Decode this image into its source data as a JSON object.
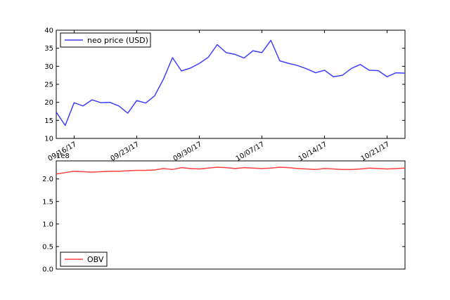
{
  "chart_data": [
    {
      "type": "line",
      "x": [
        "09/14/17",
        "09/15/17",
        "09/16/17",
        "09/17/17",
        "09/18/17",
        "09/19/17",
        "09/20/17",
        "09/21/17",
        "09/22/17",
        "09/23/17",
        "09/24/17",
        "09/25/17",
        "09/26/17",
        "09/27/17",
        "09/28/17",
        "09/29/17",
        "09/30/17",
        "10/01/17",
        "10/02/17",
        "10/03/17",
        "10/04/17",
        "10/05/17",
        "10/06/17",
        "10/07/17",
        "10/08/17",
        "10/09/17",
        "10/10/17",
        "10/11/17",
        "10/12/17",
        "10/13/17",
        "10/14/17",
        "10/15/17",
        "10/16/17",
        "10/17/17",
        "10/18/17",
        "10/19/17",
        "10/20/17",
        "10/21/17",
        "10/22/17",
        "10/23/17"
      ],
      "series": [
        {
          "name": "neo price (USD)",
          "color": "#3f3fff",
          "values": [
            17.3,
            13.6,
            19.9,
            19.0,
            20.7,
            19.9,
            20.0,
            19.0,
            17.0,
            20.5,
            19.8,
            21.8,
            26.5,
            32.4,
            28.7,
            29.5,
            30.8,
            32.5,
            36.0,
            33.8,
            33.3,
            32.3,
            34.3,
            33.8,
            37.2,
            31.5,
            30.8,
            30.2,
            29.3,
            28.2,
            28.9,
            27.1,
            27.5,
            29.4,
            30.5,
            28.9,
            28.8,
            27.1,
            28.2,
            28.1
          ]
        }
      ],
      "xticks": [
        "09/16/17",
        "09/23/17",
        "09/30/17",
        "10/07/17",
        "10/14/17",
        "10/21/17"
      ],
      "yticks": [
        "10",
        "15",
        "20",
        "25",
        "30",
        "35",
        "40"
      ],
      "ylim": [
        10,
        40
      ],
      "legend": "upper-left"
    },
    {
      "type": "line",
      "x": [
        "09/14/17",
        "09/15/17",
        "09/16/17",
        "09/17/17",
        "09/18/17",
        "09/19/17",
        "09/20/17",
        "09/21/17",
        "09/22/17",
        "09/23/17",
        "09/24/17",
        "09/25/17",
        "09/26/17",
        "09/27/17",
        "09/28/17",
        "09/29/17",
        "09/30/17",
        "10/01/17",
        "10/02/17",
        "10/03/17",
        "10/04/17",
        "10/05/17",
        "10/06/17",
        "10/07/17",
        "10/08/17",
        "10/09/17",
        "10/10/17",
        "10/11/17",
        "10/12/17",
        "10/13/17",
        "10/14/17",
        "10/15/17",
        "10/16/17",
        "10/17/17",
        "10/18/17",
        "10/19/17",
        "10/20/17",
        "10/21/17",
        "10/22/17",
        "10/23/17"
      ],
      "series": [
        {
          "name": "OBV",
          "color": "#ff4040",
          "values": [
            2.11,
            2.14,
            2.17,
            2.16,
            2.15,
            2.16,
            2.17,
            2.17,
            2.18,
            2.19,
            2.19,
            2.2,
            2.23,
            2.21,
            2.25,
            2.23,
            2.22,
            2.24,
            2.26,
            2.25,
            2.23,
            2.25,
            2.24,
            2.23,
            2.24,
            2.26,
            2.25,
            2.23,
            2.22,
            2.21,
            2.23,
            2.22,
            2.21,
            2.21,
            2.22,
            2.24,
            2.23,
            2.22,
            2.23,
            2.24
          ]
        }
      ],
      "yticks": [
        "0.0",
        "0.5",
        "1.0",
        "1.5",
        "2.0"
      ],
      "ylim": [
        0,
        2.4
      ],
      "offset_text": "1e8",
      "legend": "lower-left"
    }
  ]
}
